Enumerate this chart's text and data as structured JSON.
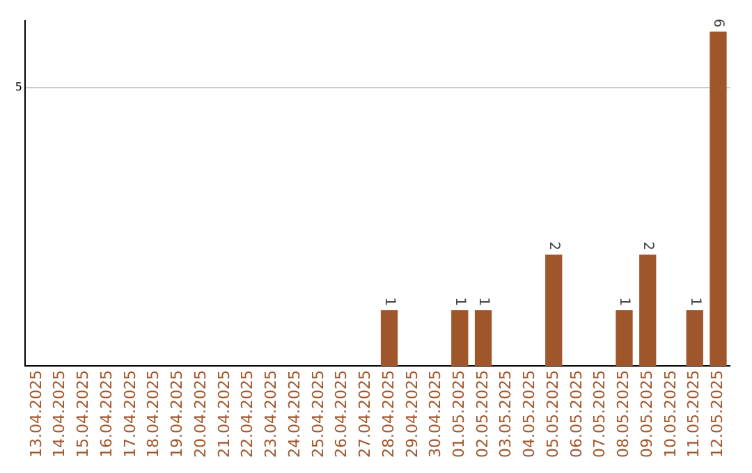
{
  "chart_data": {
    "type": "bar",
    "categories": [
      "13.04.2025",
      "14.04.2025",
      "15.04.2025",
      "16.04.2025",
      "17.04.2025",
      "18.04.2025",
      "19.04.2025",
      "20.04.2025",
      "21.04.2025",
      "22.04.2025",
      "23.04.2025",
      "24.04.2025",
      "25.04.2025",
      "26.04.2025",
      "27.04.2025",
      "28.04.2025",
      "29.04.2025",
      "30.04.2025",
      "01.05.2025",
      "02.05.2025",
      "03.05.2025",
      "04.05.2025",
      "05.05.2025",
      "06.05.2025",
      "07.05.2025",
      "08.05.2025",
      "09.05.2025",
      "10.05.2025",
      "11.05.2025",
      "12.05.2025"
    ],
    "values": [
      null,
      null,
      null,
      null,
      null,
      null,
      null,
      null,
      null,
      null,
      null,
      null,
      null,
      null,
      null,
      1,
      null,
      null,
      1,
      1,
      null,
      null,
      2,
      null,
      null,
      1,
      2,
      null,
      1,
      6
    ],
    "data_labels": true,
    "color": "#a0562b",
    "ylim": [
      0,
      6.2
    ],
    "yticks": [
      5
    ],
    "grid": "y",
    "legend": false
  }
}
